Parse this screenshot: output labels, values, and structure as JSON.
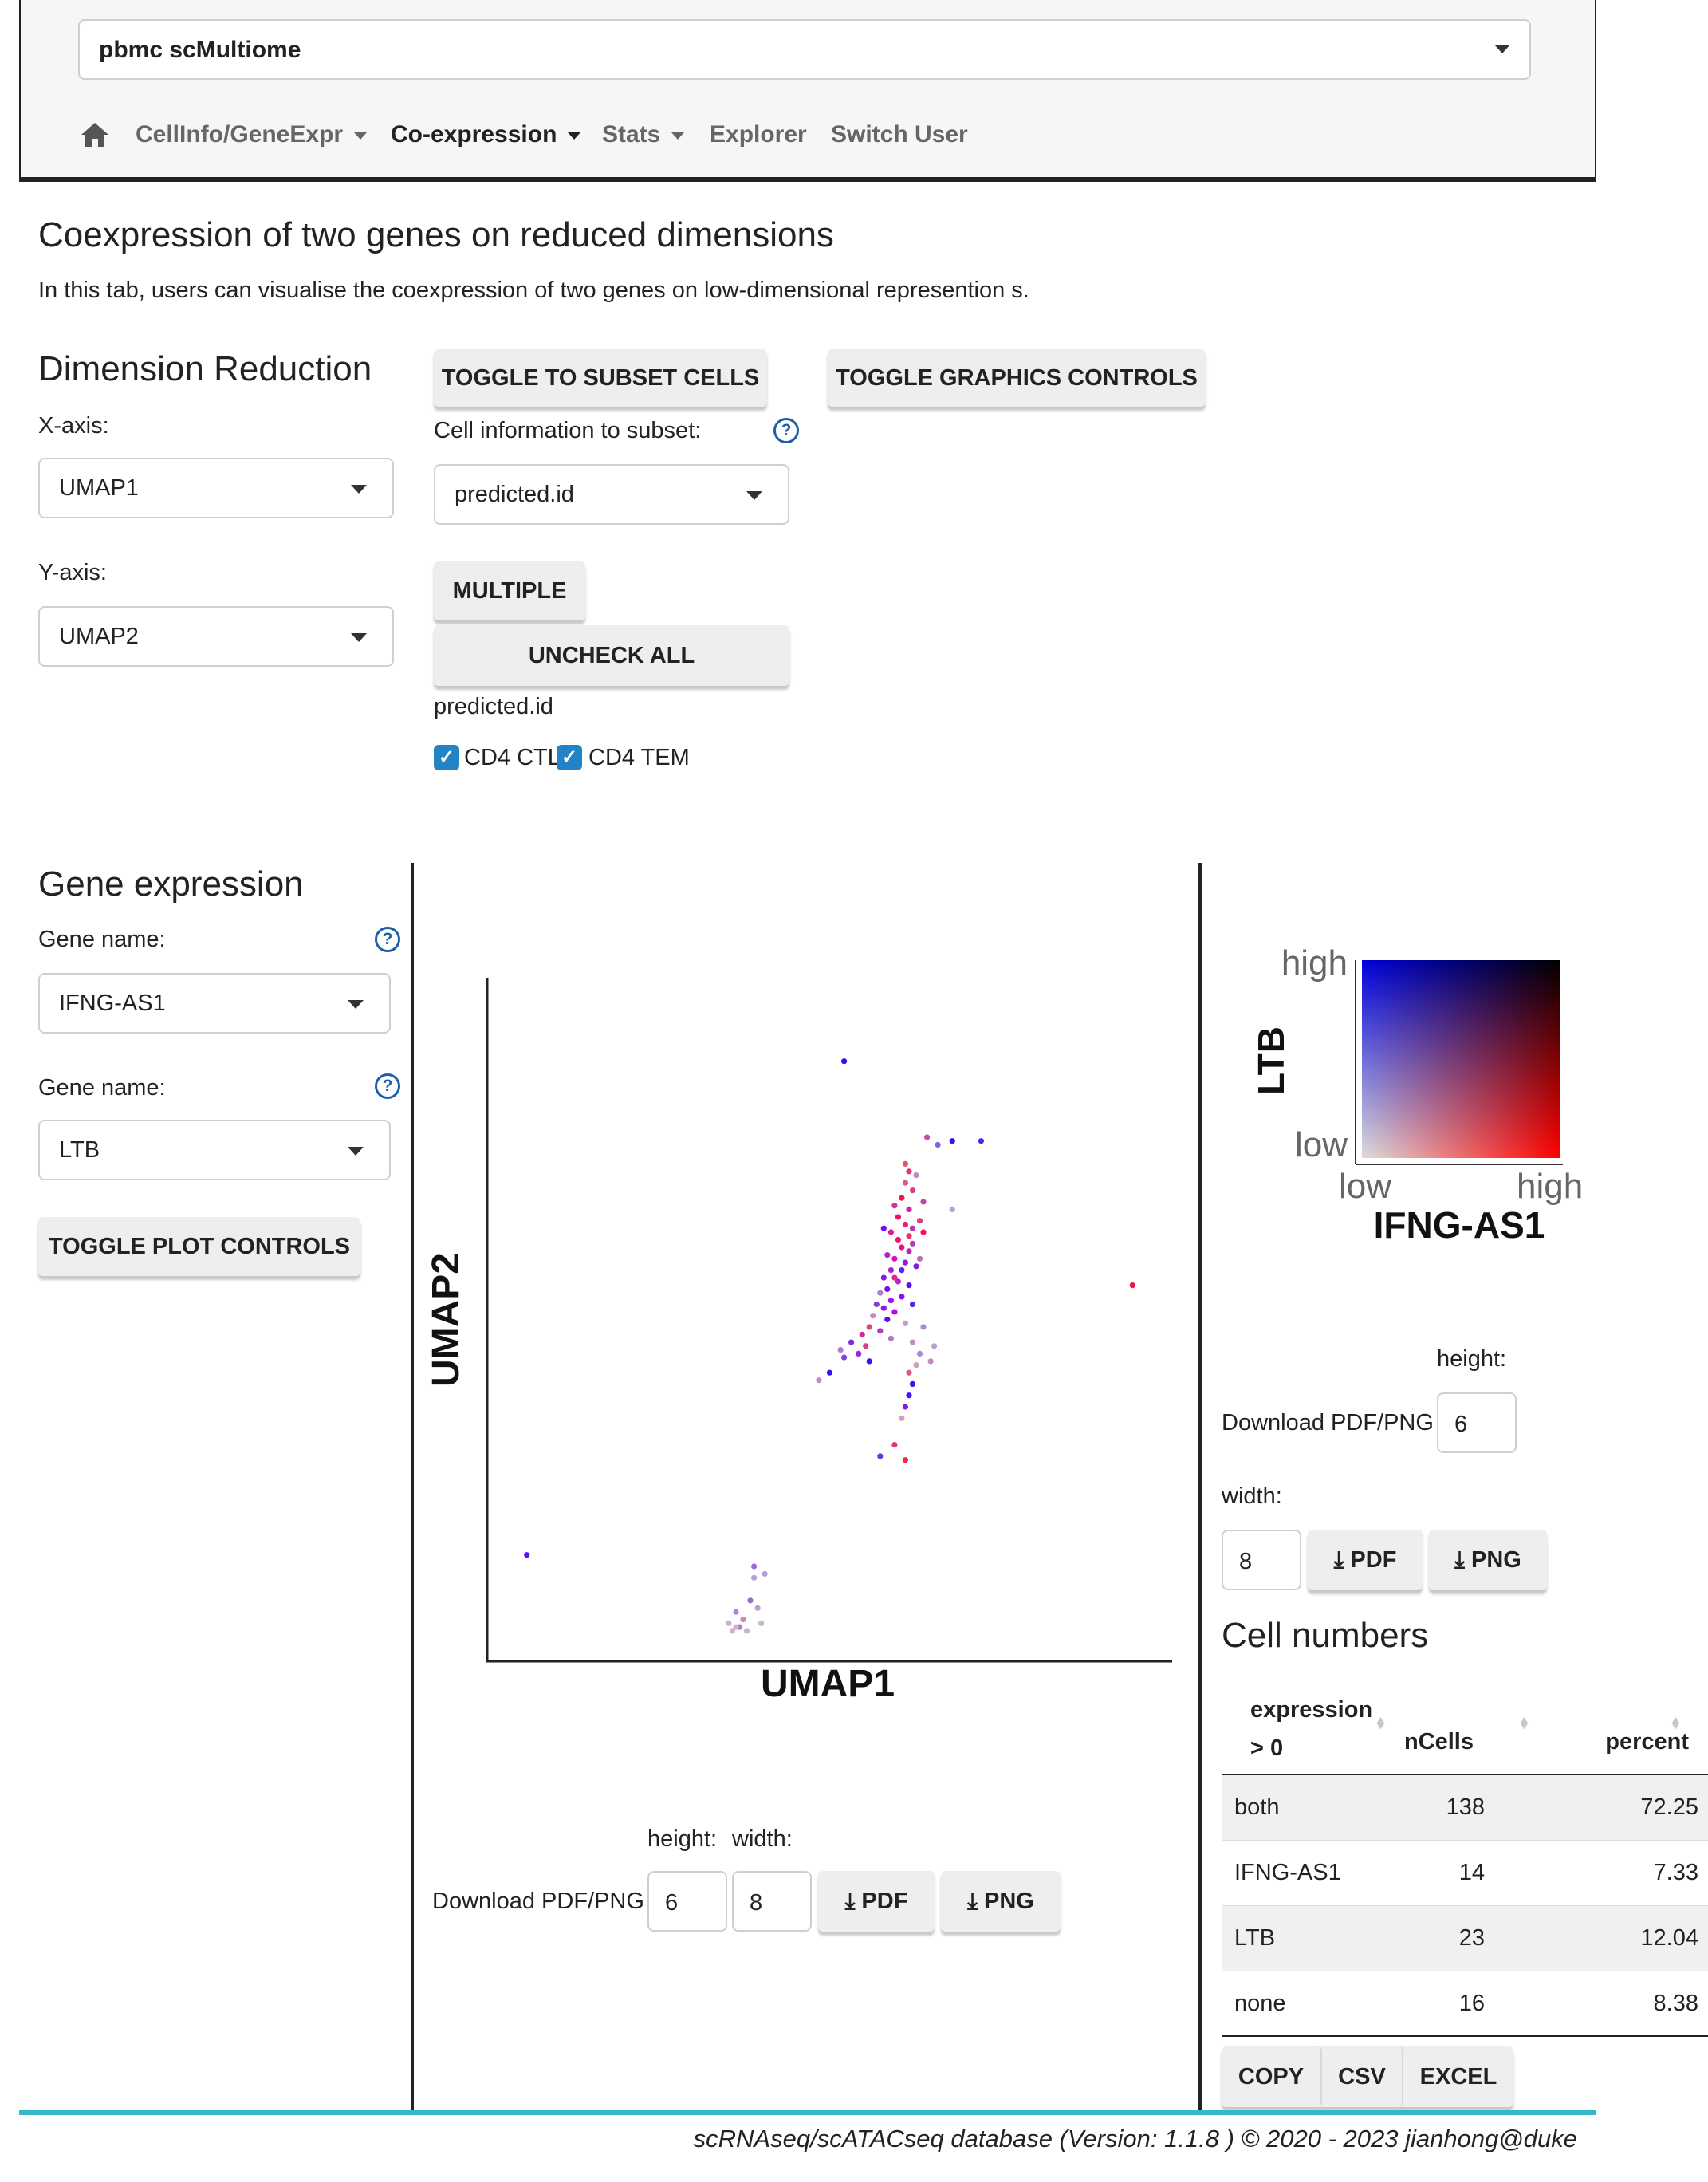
{
  "header": {
    "dataset_select": "pbmc scMultiome",
    "nav": [
      {
        "icon": "home-icon"
      },
      {
        "label": "CellInfo/GeneExpr"
      },
      {
        "label": "Co-expression"
      },
      {
        "label": "Stats"
      },
      {
        "label": "Explorer"
      },
      {
        "label": "Switch User"
      }
    ]
  },
  "page": {
    "title": "Coexpression of two genes on reduced dimensions",
    "description": "In this tab, users can visualise the coexpression of two genes on low-dimensional represention s."
  },
  "dimred": {
    "title": "Dimension Reduction",
    "x_label": "X-axis:",
    "x_value": "UMAP1",
    "y_label": "Y-axis:",
    "y_value": "UMAP2"
  },
  "subset": {
    "toggle_label": "TOGGLE TO SUBSET CELLS",
    "graphics_label": "TOGGLE GRAPHICS CONTROLS",
    "cellinfo_label": "Cell information to subset:",
    "cellinfo_value": "predicted.id",
    "multiple_label": "MULTIPLE",
    "uncheck_label": "UNCHECK ALL",
    "group_label": "predicted.id",
    "checkboxes": [
      "CD4 CTL",
      "CD4 TEM"
    ]
  },
  "gene": {
    "title": "Gene expression",
    "gene1_label": "Gene name:",
    "gene1_value": "IFNG-AS1",
    "gene2_label": "Gene name:",
    "gene2_value": "LTB",
    "plot_controls_label": "TOGGLE PLOT CONTROLS"
  },
  "plot": {
    "xlabel": "UMAP1",
    "ylabel": "UMAP2",
    "download_label": "Download PDF/PNG",
    "height_label": "height:",
    "width_label": "width:",
    "height_value": "6",
    "width_value": "8",
    "pdf_label": "PDF",
    "png_label": "PNG"
  },
  "legend": {
    "ylabel": "LTB",
    "xlabel": "IFNG-AS1",
    "y_high": "high",
    "y_low": "low",
    "x_low": "low",
    "x_high": "high",
    "download_label": "Download PDF/PNG",
    "height_label": "height:",
    "width_label": "width:",
    "height_value": "6",
    "width_value": "8",
    "pdf_label": "PDF",
    "png_label": "PNG"
  },
  "cell_numbers": {
    "title": "Cell numbers",
    "columns": [
      "expression > 0",
      "nCells",
      "percent"
    ],
    "rows": [
      {
        "expr": "both",
        "n": "138",
        "pct": "72.25"
      },
      {
        "expr": "IFNG-AS1",
        "n": "14",
        "pct": "7.33"
      },
      {
        "expr": "LTB",
        "n": "23",
        "pct": "12.04"
      },
      {
        "expr": "none",
        "n": "16",
        "pct": "8.38"
      }
    ],
    "buttons": [
      "COPY",
      "CSV",
      "EXCEL"
    ]
  },
  "footer": {
    "text": "scRNAseq/scATACseq database (Version: 1.1.8 ) © 2020 - 2023 jianhong@duke"
  },
  "colors": {
    "high_both": "#ff00ff",
    "high_gene1": "#ff0000",
    "high_gene2": "#0000ff",
    "low": "#dddddd",
    "accent": "#2283c6",
    "footer_line": "#35b7c8"
  },
  "chart_data": {
    "type": "scatter",
    "xlabel": "UMAP1",
    "ylabel": "UMAP2",
    "points": [
      [
        -1.6,
        9.8,
        0.1,
        0.9
      ],
      [
        0.7,
        7.8,
        0.5,
        0.3
      ],
      [
        1.0,
        7.6,
        0.1,
        0.5
      ],
      [
        1.4,
        7.7,
        0.1,
        0.9
      ],
      [
        2.2,
        7.7,
        0.2,
        0.8
      ],
      [
        0.1,
        7.1,
        0.6,
        0.1
      ],
      [
        0.2,
        6.9,
        0.7,
        0.2
      ],
      [
        0.1,
        6.6,
        0.5,
        0.2
      ],
      [
        0.3,
        6.4,
        0.6,
        0.3
      ],
      [
        0.0,
        6.2,
        0.9,
        0.2
      ],
      [
        -0.2,
        6.0,
        0.6,
        0.4
      ],
      [
        0.2,
        5.9,
        0.7,
        0.5
      ],
      [
        -0.1,
        5.7,
        0.9,
        0.3
      ],
      [
        0.1,
        5.5,
        0.8,
        0.4
      ],
      [
        0.3,
        5.4,
        0.5,
        0.5
      ],
      [
        -0.3,
        5.3,
        0.8,
        0.5
      ],
      [
        -0.1,
        5.1,
        0.9,
        0.4
      ],
      [
        0.0,
        4.9,
        0.9,
        0.5
      ],
      [
        0.2,
        4.8,
        0.6,
        0.6
      ],
      [
        -0.4,
        4.7,
        0.6,
        0.6
      ],
      [
        -0.2,
        4.6,
        0.8,
        0.7
      ],
      [
        0.1,
        4.5,
        0.5,
        0.8
      ],
      [
        0.4,
        4.4,
        0.4,
        0.8
      ],
      [
        -0.3,
        4.3,
        0.5,
        0.7
      ],
      [
        -0.5,
        4.1,
        0.4,
        0.8
      ],
      [
        -0.1,
        4.0,
        0.6,
        0.6
      ],
      [
        0.2,
        3.9,
        0.3,
        0.9
      ],
      [
        -0.4,
        3.8,
        0.4,
        0.9
      ],
      [
        -0.6,
        3.7,
        0.2,
        0.3
      ],
      [
        0.0,
        3.6,
        0.5,
        0.9
      ],
      [
        -0.3,
        3.5,
        0.6,
        0.8
      ],
      [
        -0.7,
        3.4,
        0.3,
        0.6
      ],
      [
        0.3,
        3.4,
        0.2,
        0.8
      ],
      [
        -0.5,
        3.3,
        0.5,
        0.8
      ],
      [
        -0.2,
        3.2,
        0.7,
        0.9
      ],
      [
        -0.8,
        3.1,
        0.2,
        0.2
      ],
      [
        -0.4,
        3.0,
        0.3,
        0.9
      ],
      [
        0.1,
        2.9,
        0.1,
        0.2
      ],
      [
        -0.9,
        2.8,
        0.6,
        0.2
      ],
      [
        -0.6,
        2.7,
        0.5,
        0.5
      ],
      [
        -1.1,
        2.6,
        0.7,
        0.4
      ],
      [
        -0.3,
        2.5,
        0.2,
        0.3
      ],
      [
        -1.4,
        2.4,
        0.3,
        0.7
      ],
      [
        -1.0,
        2.3,
        0.6,
        0.3
      ],
      [
        -1.7,
        2.2,
        0.2,
        0.3
      ],
      [
        -1.2,
        2.1,
        0.5,
        0.7
      ],
      [
        -1.6,
        2.0,
        0.2,
        0.6
      ],
      [
        -0.9,
        1.9,
        0.1,
        0.9
      ],
      [
        -2.0,
        1.6,
        0.1,
        0.9
      ],
      [
        -2.3,
        1.4,
        0.2,
        0.2
      ],
      [
        0.3,
        2.4,
        0.2,
        0.2
      ],
      [
        0.5,
        2.1,
        0.1,
        0.3
      ],
      [
        0.4,
        1.8,
        0.2,
        0.1
      ],
      [
        0.2,
        1.6,
        0.5,
        0.2
      ],
      [
        0.3,
        1.3,
        0.1,
        0.9
      ],
      [
        0.2,
        1.0,
        0.2,
        0.9
      ],
      [
        0.1,
        0.7,
        0.4,
        0.8
      ],
      [
        0.0,
        0.4,
        0.2,
        0.1
      ],
      [
        -0.6,
        -0.6,
        0.2,
        0.7
      ],
      [
        0.1,
        -0.7,
        0.8,
        0.1
      ],
      [
        -0.2,
        -0.3,
        0.7,
        0.2
      ],
      [
        0.8,
        1.9,
        0.2,
        0.2
      ],
      [
        0.9,
        2.3,
        0.1,
        0.2
      ],
      [
        0.6,
        2.8,
        0.1,
        0.3
      ],
      [
        0.2,
        5.2,
        0.7,
        0.2
      ],
      [
        0.6,
        6.1,
        0.5,
        0.4
      ],
      [
        0.4,
        6.8,
        0.2,
        0.2
      ],
      [
        1.4,
        5.9,
        0.1,
        0.2
      ],
      [
        0.5,
        5.6,
        0.6,
        0.3
      ],
      [
        0.3,
        5.0,
        0.4,
        0.5
      ],
      [
        0.6,
        5.3,
        0.9,
        0.3
      ],
      [
        -0.5,
        5.4,
        0.4,
        0.9
      ],
      [
        0.5,
        4.6,
        0.3,
        0.3
      ],
      [
        0.0,
        4.3,
        0.2,
        0.8
      ],
      [
        -0.2,
        4.1,
        0.7,
        0.4
      ],
      [
        6.4,
        3.9,
        0.9,
        0.2
      ],
      [
        -10.4,
        -3.2,
        0.3,
        0.9
      ],
      [
        -4.6,
        -4.7,
        0.1,
        0.3
      ],
      [
        -4.4,
        -4.9,
        0.2,
        0.2
      ],
      [
        -4.8,
        -5.0,
        0.1,
        0.1
      ],
      [
        -4.2,
        -4.4,
        0.2,
        0.4
      ],
      [
        -4.0,
        -4.6,
        0.1,
        0.2
      ],
      [
        -4.3,
        -5.2,
        0.1,
        0.1
      ],
      [
        -4.5,
        -5.1,
        0.2,
        0.3
      ],
      [
        -3.9,
        -5.0,
        0.1,
        0.1
      ],
      [
        -4.1,
        -3.8,
        0.1,
        0.2
      ],
      [
        -3.8,
        -3.7,
        0.1,
        0.2
      ],
      [
        -4.1,
        -3.5,
        0.2,
        0.4
      ],
      [
        -4.7,
        -5.2,
        0.1,
        0.1
      ],
      [
        -4.6,
        -5.1,
        0.1,
        0.1
      ]
    ]
  }
}
